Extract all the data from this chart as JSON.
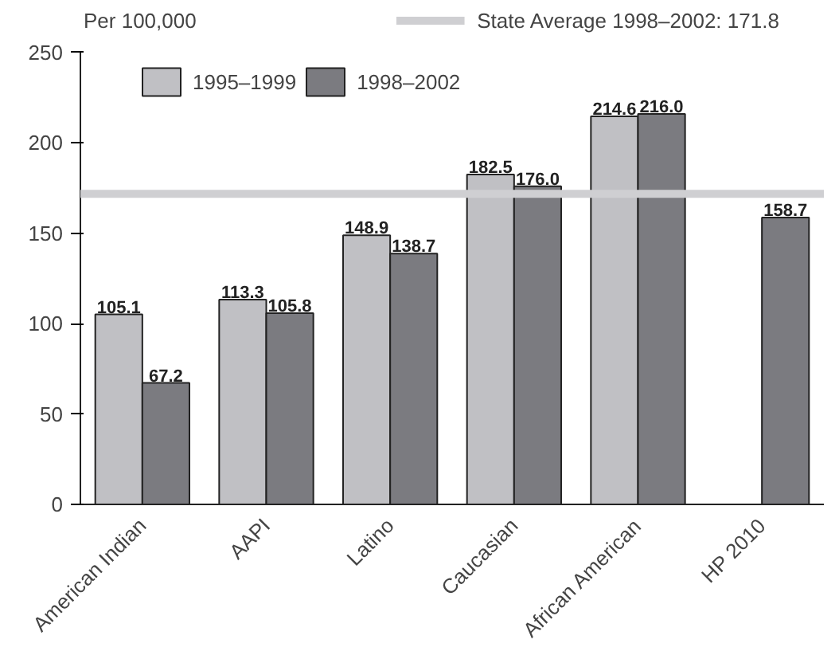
{
  "chart_data": {
    "type": "bar",
    "ylabel": "Per 100,000",
    "categories": [
      "American Indian",
      "AAPI",
      "Latino",
      "Caucasian",
      "African American",
      "HP 2010"
    ],
    "series": [
      {
        "name": "1995–1999",
        "color": "#c0c0c4",
        "values": [
          105.1,
          113.3,
          148.9,
          182.5,
          214.6,
          null
        ],
        "value_labels": [
          "105.1",
          "113.3",
          "148.9",
          "182.5",
          "214.6",
          null
        ]
      },
      {
        "name": "1998–2002",
        "color": "#7b7b80",
        "values": [
          67.2,
          105.8,
          138.7,
          176.0,
          216.0,
          158.7
        ],
        "value_labels": [
          "67.2",
          "105.8",
          "138.7",
          "176.0",
          "216.0",
          "158.7"
        ]
      }
    ],
    "ylim": [
      0,
      250
    ],
    "yticks": [
      0,
      50,
      100,
      150,
      200,
      250
    ],
    "ref_lines": [
      {
        "axis": "y",
        "value": 171.8,
        "label": "State Average 1998–2002: 171.8",
        "color": "#cfcfd2"
      }
    ],
    "legend": "top left",
    "grid": false
  }
}
